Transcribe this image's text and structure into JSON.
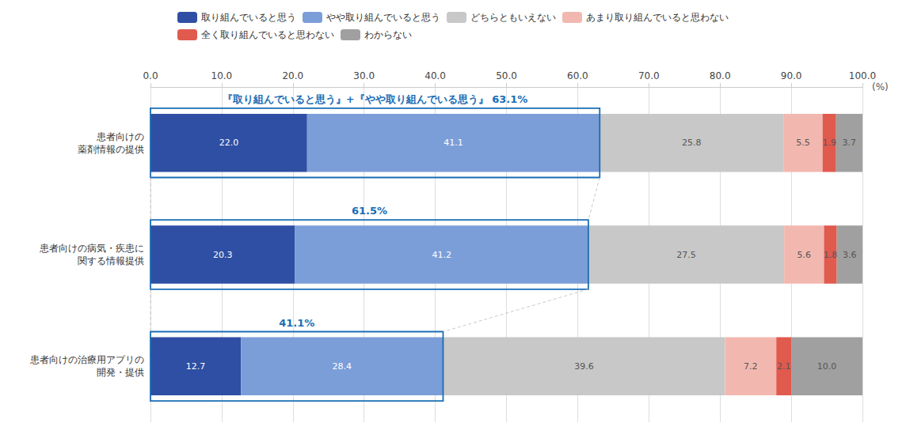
{
  "chart_data": {
    "type": "bar",
    "orientation": "horizontal",
    "stacked": true,
    "data_labels": true,
    "grid": true,
    "legend": "top",
    "xlabel": "(%)",
    "categories": [
      "患者向けの\n薬剤情報の提供",
      "患者向けの病気・疾患に\n関する情報提供",
      "患者向けの治療用アプリの\n開発・提供"
    ],
    "series": [
      {
        "name": "取り組んでいると思う",
        "color": "#2E4FA3",
        "values": [
          22.0,
          20.3,
          12.7
        ],
        "value_labels": [
          "22.0",
          "20.3",
          "12.7"
        ]
      },
      {
        "name": "やや取り組んでいると思う",
        "color": "#7B9ED9",
        "values": [
          41.1,
          41.2,
          28.4
        ],
        "value_labels": [
          "41.1",
          "41.2",
          "28.4"
        ]
      },
      {
        "name": "どちらともいえない",
        "color": "#C8C8C8",
        "values": [
          25.8,
          27.5,
          39.6
        ],
        "value_labels": [
          "25.8",
          "27.5",
          "39.6"
        ]
      },
      {
        "name": "あまり取り組んでいると思わない",
        "color": "#F2B8B0",
        "values": [
          5.5,
          5.6,
          7.2
        ],
        "value_labels": [
          "5.5",
          "5.6",
          "7.2"
        ]
      },
      {
        "name": "全く取り組んでいると思わない",
        "color": "#E05A4E",
        "values": [
          1.9,
          1.8,
          2.1
        ],
        "value_labels": [
          "1.9",
          "1.8",
          "2.1"
        ]
      },
      {
        "name": "わからない",
        "color": "#A0A0A0",
        "values": [
          3.7,
          3.6,
          10.0
        ],
        "value_labels": [
          "3.7",
          "3.6",
          "10.0"
        ]
      }
    ],
    "annotations": [
      {
        "text": "『取り組んでいると思う』+『やや取り組んでいる思う』 63.1%",
        "value": 63.1,
        "color": "#1A6DB5"
      },
      {
        "text": "61.5%",
        "value": 61.5,
        "color": "#1A6DB5"
      },
      {
        "text": "41.1%",
        "value": 41.1,
        "color": "#1A6DB5"
      }
    ],
    "xlim": [
      0,
      100
    ],
    "xticks": [
      {
        "value": 0,
        "label": "0.0"
      },
      {
        "value": 10,
        "label": "10.0"
      },
      {
        "value": 20,
        "label": "20.0"
      },
      {
        "value": 30,
        "label": "30.0"
      },
      {
        "value": 40,
        "label": "40.0"
      },
      {
        "value": 50,
        "label": "50.0"
      },
      {
        "value": 60,
        "label": "60.0"
      },
      {
        "value": 70,
        "label": "70.0"
      },
      {
        "value": 80,
        "label": "80.0"
      },
      {
        "value": 90,
        "label": "90.0"
      },
      {
        "value": 100,
        "label": "100.0"
      }
    ]
  }
}
